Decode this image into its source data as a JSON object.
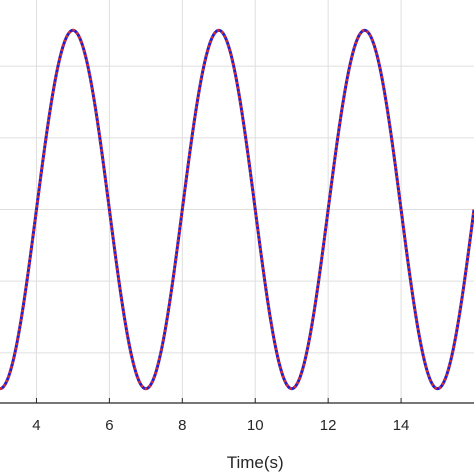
{
  "chart_data": {
    "type": "line",
    "title": "",
    "xlabel": "Time(s)",
    "ylabel": "",
    "xlim": [
      3,
      16
    ],
    "ylim": [
      -1.08,
      1.08
    ],
    "x_ticks": [
      4,
      6,
      8,
      10,
      12,
      14
    ],
    "y_gridlines": [
      -0.8,
      -0.4,
      0,
      0.4,
      0.8
    ],
    "grid": true,
    "legend": "none",
    "colors": {
      "series_1": "#1f1fd6",
      "series_2": "#d62f2f",
      "grid": "#dfdfdf",
      "axis": "#262626"
    },
    "series": [
      {
        "style": "solid",
        "color": "#1f1fd6",
        "description_points": [
          [
            3,
            -1.0
          ],
          [
            4,
            0.0
          ],
          [
            5,
            1.0
          ],
          [
            6,
            0.0
          ],
          [
            7,
            -1.0
          ],
          [
            8,
            0.0
          ],
          [
            9,
            1.0
          ],
          [
            10,
            0.0
          ],
          [
            11,
            -1.0
          ],
          [
            12,
            0.0
          ],
          [
            13,
            1.0
          ],
          [
            14,
            0.0
          ],
          [
            15,
            -1.0
          ],
          [
            16,
            0.0
          ]
        ],
        "period": 4,
        "amplitude": 1,
        "peak_at": 5
      },
      {
        "style": "dotted",
        "color": "#d62f2f",
        "description_points": [
          [
            3,
            -1.0
          ],
          [
            4,
            0.0
          ],
          [
            5,
            1.0
          ],
          [
            6,
            0.0
          ],
          [
            7,
            -1.0
          ],
          [
            8,
            0.0
          ],
          [
            9,
            1.0
          ],
          [
            10,
            0.0
          ],
          [
            11,
            -1.0
          ],
          [
            12,
            0.0
          ],
          [
            13,
            1.0
          ],
          [
            14,
            0.0
          ],
          [
            15,
            -1.0
          ],
          [
            16,
            0.0
          ]
        ],
        "period": 4,
        "amplitude": 1,
        "peak_at": 5
      }
    ]
  }
}
